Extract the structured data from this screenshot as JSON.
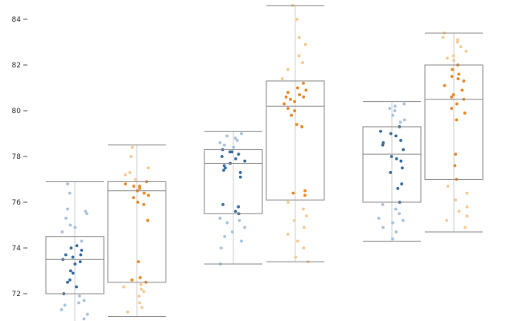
{
  "chart_data": {
    "type": "box",
    "title": "",
    "xlabel": "",
    "ylabel": "",
    "ylim": [
      71.0,
      84.9
    ],
    "yticks": [
      72,
      74,
      76,
      78,
      80,
      82,
      84
    ],
    "grid": false,
    "legend": "none",
    "colors": {
      "dark": "#3b6fa0",
      "light": "#a9c3dc",
      "orange_dark": "#e88a2a",
      "orange_light": "#f7c993"
    },
    "groups": [
      {
        "boxes": [
          {
            "series": "blue",
            "min": 70.5,
            "q1": 72.0,
            "median": 73.5,
            "q3": 74.5,
            "max": 76.9,
            "points_dark": [
              74.1,
              73.9,
              73.7,
              73.6,
              73.5,
              73.3,
              73.0,
              72.9,
              72.5,
              72.3,
              72.0,
              73.7,
              73.4,
              74.0,
              72.6
            ],
            "points_light": [
              76.8,
              76.4,
              75.7,
              75.6,
              75.5,
              75.3,
              74.9,
              74.7,
              74.3,
              71.9,
              71.7,
              71.5,
              71.3,
              71.1,
              70.9,
              70.7,
              75.0,
              71.6
            ]
          },
          {
            "series": "orange",
            "min": 71.0,
            "q1": 72.5,
            "median": 76.5,
            "q3": 76.9,
            "max": 78.5,
            "points_dark": [
              76.9,
              76.8,
              76.7,
              76.6,
              76.5,
              76.4,
              76.2,
              76.0,
              75.9,
              75.2,
              73.4,
              72.7,
              72.6,
              72.5,
              76.7,
              76.3
            ],
            "points_light": [
              78.4,
              78.0,
              77.5,
              77.2,
              77.0,
              72.4,
              72.2,
              72.1,
              71.9,
              71.6,
              71.4,
              71.2,
              77.3,
              72.3
            ]
          }
        ]
      },
      {
        "boxes": [
          {
            "series": "blue",
            "min": 73.3,
            "q1": 75.5,
            "median": 77.7,
            "q3": 78.3,
            "max": 79.1,
            "points_dark": [
              78.3,
              78.2,
              78.1,
              78.0,
              77.8,
              77.7,
              77.6,
              77.5,
              77.4,
              77.3,
              77.1,
              75.9,
              75.8,
              75.6,
              75.5,
              78.2,
              77.9
            ],
            "points_light": [
              79.0,
              78.9,
              78.8,
              78.6,
              78.5,
              78.4,
              75.3,
              75.1,
              74.9,
              74.7,
              74.5,
              74.3,
              74.0,
              73.3,
              78.7,
              75.2
            ]
          },
          {
            "series": "orange",
            "min": 73.4,
            "q1": 76.1,
            "median": 80.2,
            "q3": 81.3,
            "max": 84.6,
            "points_dark": [
              81.2,
              81.0,
              80.8,
              80.7,
              80.6,
              80.5,
              80.4,
              80.3,
              80.1,
              80.0,
              79.8,
              79.4,
              79.3,
              76.5,
              76.4,
              76.3,
              80.6,
              80.9
            ],
            "points_light": [
              84.6,
              84.0,
              83.2,
              82.9,
              82.4,
              82.1,
              81.8,
              81.4,
              76.0,
              75.7,
              75.4,
              75.2,
              74.9,
              74.6,
              74.3,
              74.0,
              73.6,
              73.4
            ]
          }
        ]
      },
      {
        "boxes": [
          {
            "series": "blue",
            "min": 74.3,
            "q1": 76.0,
            "median": 78.1,
            "q3": 79.3,
            "max": 80.4,
            "points_dark": [
              79.3,
              79.1,
              78.9,
              78.7,
              78.5,
              78.3,
              78.0,
              77.9,
              77.8,
              77.5,
              77.3,
              76.8,
              76.6,
              76.0,
              79.0,
              78.6
            ],
            "points_light": [
              80.3,
              80.2,
              80.0,
              79.8,
              79.6,
              79.5,
              75.9,
              75.7,
              75.5,
              75.3,
              75.1,
              74.9,
              74.7,
              74.4,
              80.1,
              75.2
            ]
          },
          {
            "series": "orange",
            "min": 74.7,
            "q1": 77.0,
            "median": 80.5,
            "q3": 82.0,
            "max": 83.4,
            "points_dark": [
              82.0,
              81.8,
              81.6,
              81.4,
              81.3,
              81.1,
              80.9,
              80.6,
              80.5,
              80.3,
              80.1,
              79.9,
              79.6,
              78.1,
              77.6,
              77.0,
              81.5,
              80.7
            ],
            "points_light": [
              83.4,
              83.2,
              83.0,
              82.8,
              82.6,
              82.4,
              82.2,
              76.7,
              76.4,
              76.1,
              75.8,
              75.6,
              75.4,
              75.2,
              74.9,
              83.1,
              82.3
            ]
          }
        ]
      }
    ]
  }
}
